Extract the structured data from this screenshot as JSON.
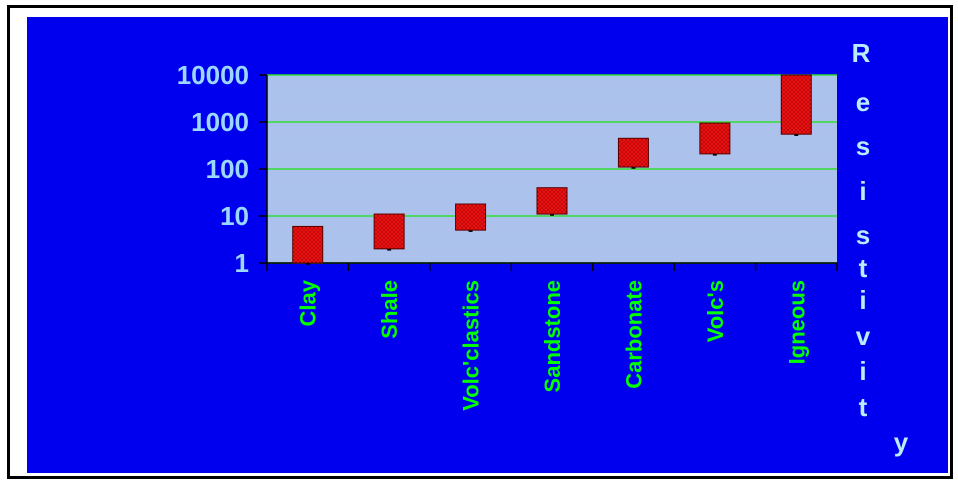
{
  "chart_data": {
    "type": "bar",
    "subtype": "floating-range",
    "y_scale": "log",
    "ylim": [
      1,
      10000
    ],
    "y_ticks": [
      "1",
      "10",
      "100",
      "1000",
      "10000"
    ],
    "categories": [
      "Clay",
      "Shale",
      "Volc'clastics",
      "Sandstone",
      "Carbonate",
      "Volc's",
      "Igneous"
    ],
    "ranges": [
      {
        "low": 1,
        "high": 6
      },
      {
        "low": 2,
        "high": 11
      },
      {
        "low": 5,
        "high": 18
      },
      {
        "low": 11,
        "high": 40
      },
      {
        "low": 110,
        "high": 450
      },
      {
        "low": 210,
        "high": 950
      },
      {
        "low": 550,
        "high": 10000
      }
    ],
    "ylabel_chars": [
      "R",
      "e",
      "s",
      "i",
      "s",
      "t",
      "i",
      "v",
      "i",
      "t",
      "y"
    ],
    "grid": true,
    "legend": "none"
  },
  "colors": {
    "background": "#0000ee",
    "plot_fill": "#a9c3f0",
    "gridline": "#33dd33",
    "tick_label": "#9ad8ff",
    "category_label": "#00ff00",
    "axis_label": "#b8ecff",
    "bar_fill": "#ee1111"
  }
}
